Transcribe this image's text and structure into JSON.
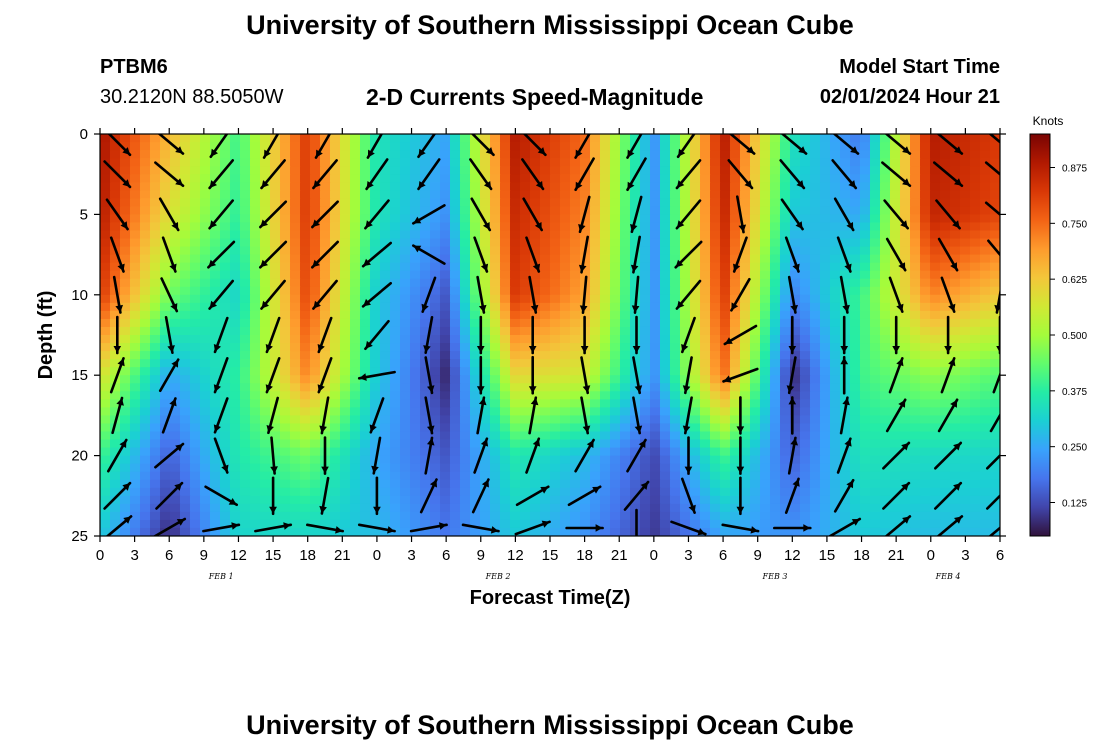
{
  "header": {
    "title": "University of Southern Mississippi Ocean Cube",
    "station": "PTBM6",
    "coords": "30.2120N  88.5050W",
    "subtitle": "2-D Currents Speed-Magnitude",
    "model_start_label": "Model Start Time",
    "model_start_value": "02/01/2024 Hour 21"
  },
  "footer": {
    "title": "University of Southern Mississippi Ocean Cube"
  },
  "chart_data": {
    "type": "heatmap",
    "title": "2-D Currents Speed-Magnitude",
    "xlabel": "Forecast Time(Z)",
    "ylabel": "Depth (ft)",
    "units": "Knots",
    "x_range_hours": [
      0,
      78
    ],
    "y_range": [
      0,
      25
    ],
    "x_ticks": [
      "0",
      "3",
      "6",
      "9",
      "12",
      "15",
      "18",
      "21",
      "0",
      "3",
      "6",
      "9",
      "12",
      "15",
      "18",
      "21",
      "0",
      "3",
      "6",
      "9",
      "12",
      "15",
      "18",
      "21",
      "0",
      "3",
      "6"
    ],
    "y_ticks": [
      0,
      5,
      10,
      15,
      20,
      25
    ],
    "date_labels": [
      {
        "label": "FEB 1",
        "hour": 10.5
      },
      {
        "label": "FEB 2",
        "hour": 34.5
      },
      {
        "label": "FEB 3",
        "hour": 58.5
      },
      {
        "label": "FEB 4",
        "hour": 73.5
      }
    ],
    "colorbar": {
      "min": 0.05,
      "max": 0.95,
      "ticks": [
        "0.125",
        "0.250",
        "0.375",
        "0.500",
        "0.625",
        "0.750",
        "0.875"
      ],
      "colors": [
        "#30123b",
        "#4145ab",
        "#4675ed",
        "#39a2fc",
        "#1bcfd4",
        "#24eca6",
        "#61fc6c",
        "#a4fc3b",
        "#d1e834",
        "#f3c63a",
        "#fe9b2d",
        "#f36315",
        "#d93806",
        "#b11901",
        "#7a0403"
      ]
    },
    "speed_samples": {
      "depths_ft": [
        0,
        5,
        10,
        15,
        20,
        25
      ],
      "hours": [
        0,
        6,
        12,
        18,
        24,
        30,
        36,
        42,
        48,
        54,
        60,
        66,
        72,
        78
      ],
      "values_knots": [
        [
          0.9,
          0.65,
          0.4,
          0.82,
          0.35,
          0.25,
          0.88,
          0.75,
          0.22,
          0.88,
          0.35,
          0.18,
          0.88,
          0.82
        ],
        [
          0.88,
          0.58,
          0.38,
          0.82,
          0.35,
          0.22,
          0.85,
          0.72,
          0.22,
          0.86,
          0.3,
          0.25,
          0.86,
          0.8
        ],
        [
          0.82,
          0.45,
          0.32,
          0.8,
          0.3,
          0.14,
          0.82,
          0.68,
          0.22,
          0.82,
          0.2,
          0.4,
          0.72,
          0.62
        ],
        [
          0.58,
          0.25,
          0.38,
          0.72,
          0.3,
          0.08,
          0.6,
          0.56,
          0.22,
          0.75,
          0.08,
          0.4,
          0.48,
          0.42
        ],
        [
          0.4,
          0.15,
          0.36,
          0.45,
          0.25,
          0.14,
          0.36,
          0.28,
          0.12,
          0.4,
          0.15,
          0.35,
          0.33,
          0.32
        ],
        [
          0.3,
          0.08,
          0.32,
          0.32,
          0.28,
          0.18,
          0.3,
          0.22,
          0.1,
          0.25,
          0.22,
          0.3,
          0.28,
          0.28
        ]
      ]
    },
    "vector_rows_ft": [
      0.5,
      2.5,
      5,
      7.5,
      10,
      12.5,
      15,
      17.5,
      20,
      22.5,
      24.5
    ],
    "vector_cols_hours": [
      1.5,
      6,
      10.5,
      15,
      19.5,
      24,
      28.5,
      33,
      37.5,
      42,
      46.5,
      51,
      55.5,
      60,
      64.5,
      69,
      73.5,
      78
    ],
    "vector_angles_deg": [
      [
        135,
        130,
        215,
        210,
        210,
        210,
        215,
        135,
        135,
        210,
        210,
        215,
        130,
        130,
        130,
        130,
        130,
        130
      ],
      [
        135,
        130,
        220,
        220,
        220,
        215,
        215,
        145,
        145,
        210,
        210,
        220,
        140,
        140,
        140,
        130,
        130,
        130
      ],
      [
        145,
        150,
        220,
        225,
        225,
        220,
        240,
        150,
        150,
        195,
        195,
        220,
        170,
        145,
        150,
        140,
        140,
        130
      ],
      [
        160,
        160,
        225,
        225,
        225,
        230,
        300,
        160,
        160,
        190,
        190,
        225,
        200,
        160,
        160,
        150,
        150,
        140
      ],
      [
        170,
        155,
        220,
        220,
        220,
        230,
        200,
        170,
        170,
        185,
        185,
        220,
        210,
        170,
        170,
        160,
        160,
        190
      ],
      [
        180,
        170,
        200,
        200,
        200,
        220,
        190,
        180,
        180,
        180,
        180,
        200,
        240,
        180,
        180,
        180,
        180,
        180
      ],
      [
        20,
        30,
        200,
        200,
        200,
        260,
        170,
        180,
        180,
        170,
        170,
        190,
        250,
        190,
        0,
        20,
        20,
        20
      ],
      [
        15,
        20,
        200,
        195,
        190,
        200,
        170,
        10,
        10,
        170,
        170,
        190,
        180,
        0,
        10,
        30,
        30,
        30
      ],
      [
        30,
        50,
        160,
        175,
        180,
        190,
        10,
        20,
        20,
        30,
        30,
        180,
        180,
        10,
        20,
        45,
        45,
        45
      ],
      [
        45,
        45,
        120,
        180,
        190,
        180,
        25,
        25,
        60,
        60,
        40,
        160,
        180,
        20,
        30,
        45,
        45,
        45
      ],
      [
        50,
        60,
        80,
        80,
        100,
        100,
        80,
        100,
        70,
        90,
        180,
        110,
        100,
        90,
        60,
        50,
        50,
        50
      ]
    ]
  }
}
